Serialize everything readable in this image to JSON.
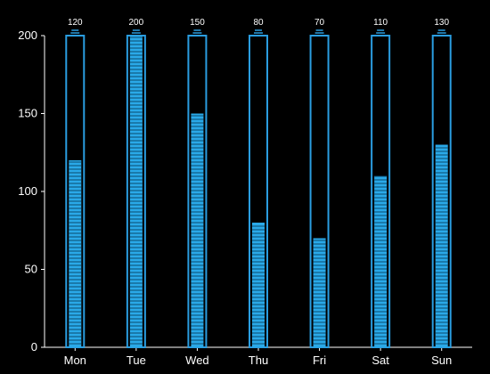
{
  "colors": {
    "background": "#000000",
    "axis": "#ffffff",
    "text": "#ffffff",
    "bar_stroke": "#2a9de0",
    "bar_fill": "#2aa9e8",
    "stripe": "#0b4a6e"
  },
  "chart_data": {
    "type": "bar",
    "style": "pictorial-striped-bar",
    "categories": [
      "Mon",
      "Tue",
      "Wed",
      "Thu",
      "Fri",
      "Sat",
      "Sun"
    ],
    "values": [
      120,
      200,
      150,
      80,
      70,
      110,
      130
    ],
    "ylim": [
      0,
      200
    ],
    "yticks": [
      0,
      50,
      100,
      150,
      200
    ],
    "title": "",
    "xlabel": "",
    "ylabel": "",
    "grid": false,
    "data_labels": true,
    "legend": "none"
  }
}
